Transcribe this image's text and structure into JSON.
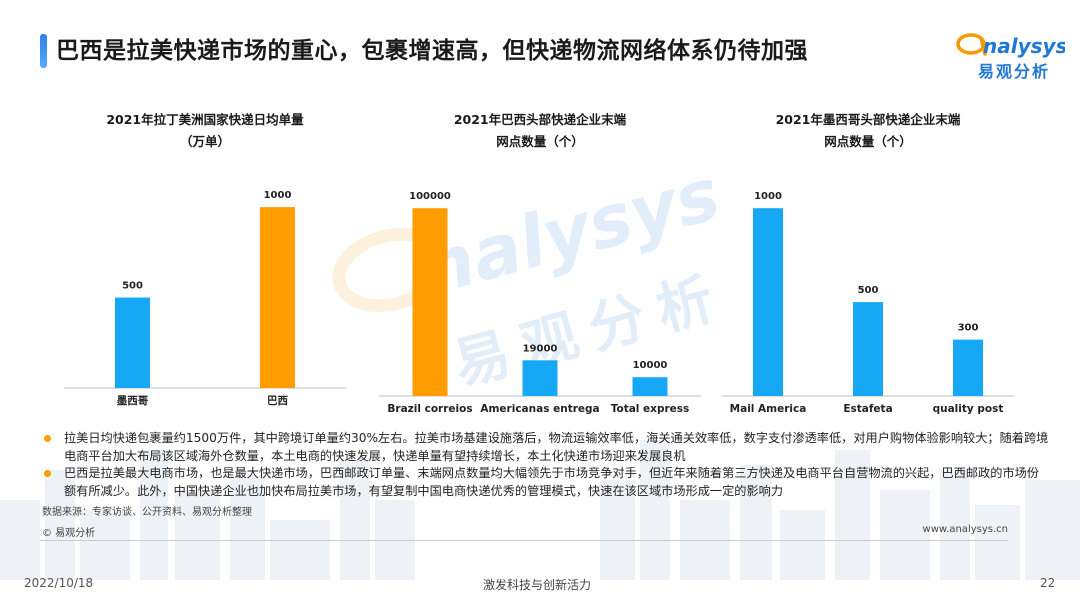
{
  "header": {
    "title": "巴西是拉美快递市场的重心，包裹增速高，但快递物流网络体系仍待加强",
    "logo_text": "nalysys",
    "logo_cn": "易观分析"
  },
  "watermark": {
    "text": "nalysys",
    "cn": "易观分析"
  },
  "colors": {
    "blue": "#17a8f5",
    "orange": "#ff9c00",
    "brand_blue": "#1e78d6"
  },
  "chart_data": [
    {
      "type": "bar",
      "title_lines": [
        "2021年拉丁美洲国家快递日均单量",
        "（万单）"
      ],
      "categories": [
        "墨西哥",
        "巴西"
      ],
      "values": [
        500,
        1000
      ],
      "value_labels": [
        "500",
        "1000"
      ],
      "bar_colors": [
        "#17a8f5",
        "#ff9c00"
      ],
      "ylim": [
        0,
        1150
      ]
    },
    {
      "type": "bar",
      "title_lines": [
        "2021年巴西头部快递企业末端",
        "网点数量（个）"
      ],
      "categories": [
        "Brazil correios",
        "Americanas entrega",
        "Total express"
      ],
      "values": [
        100000,
        19000,
        10000
      ],
      "value_labels": [
        "100000",
        "19000",
        "10000"
      ],
      "bar_colors": [
        "#ff9c00",
        "#17a8f5",
        "#17a8f5"
      ],
      "ylim": [
        0,
        115000
      ]
    },
    {
      "type": "bar",
      "title_lines": [
        "2021年墨西哥头部快递企业末端",
        "网点数量（个）"
      ],
      "categories": [
        "Mail America",
        "Estafeta",
        "quality post"
      ],
      "values": [
        1000,
        500,
        300
      ],
      "value_labels": [
        "1000",
        "500",
        "300"
      ],
      "bar_colors": [
        "#17a8f5",
        "#17a8f5",
        "#17a8f5"
      ],
      "ylim": [
        0,
        1150
      ]
    }
  ],
  "bullets": [
    "拉美日均快递包裹量约1500万件，其中跨境订单量约30%左右。拉美市场基建设施落后，物流运输效率低，海关通关效率低，数字支付渗透率低，对用户购物体验影响较大；随着跨境电商平台加大布局该区域海外仓数量，本土电商的快速发展，快递单量有望持续增长，本土化快递市场迎来发展良机",
    "巴西是拉美最大电商市场，也是最大快递市场，巴西邮政订单量、末端网点数量均大幅领先于市场竞争对手，但近年来随着第三方快递及电商平台自营物流的兴起，巴西邮政的市场份额有所减少。此外，中国快递企业也加快布局拉美市场，有望复制中国电商快递优秀的管理模式，快速在该区域市场形成一定的影响力"
  ],
  "footer": {
    "source": "数据来源：专家访谈、公开资料、易观分析整理",
    "copyright": "© 易观分析",
    "website": "www.analysys.cn",
    "date": "2022/10/18",
    "slogan": "激发科技与创新活力",
    "page": "22"
  }
}
